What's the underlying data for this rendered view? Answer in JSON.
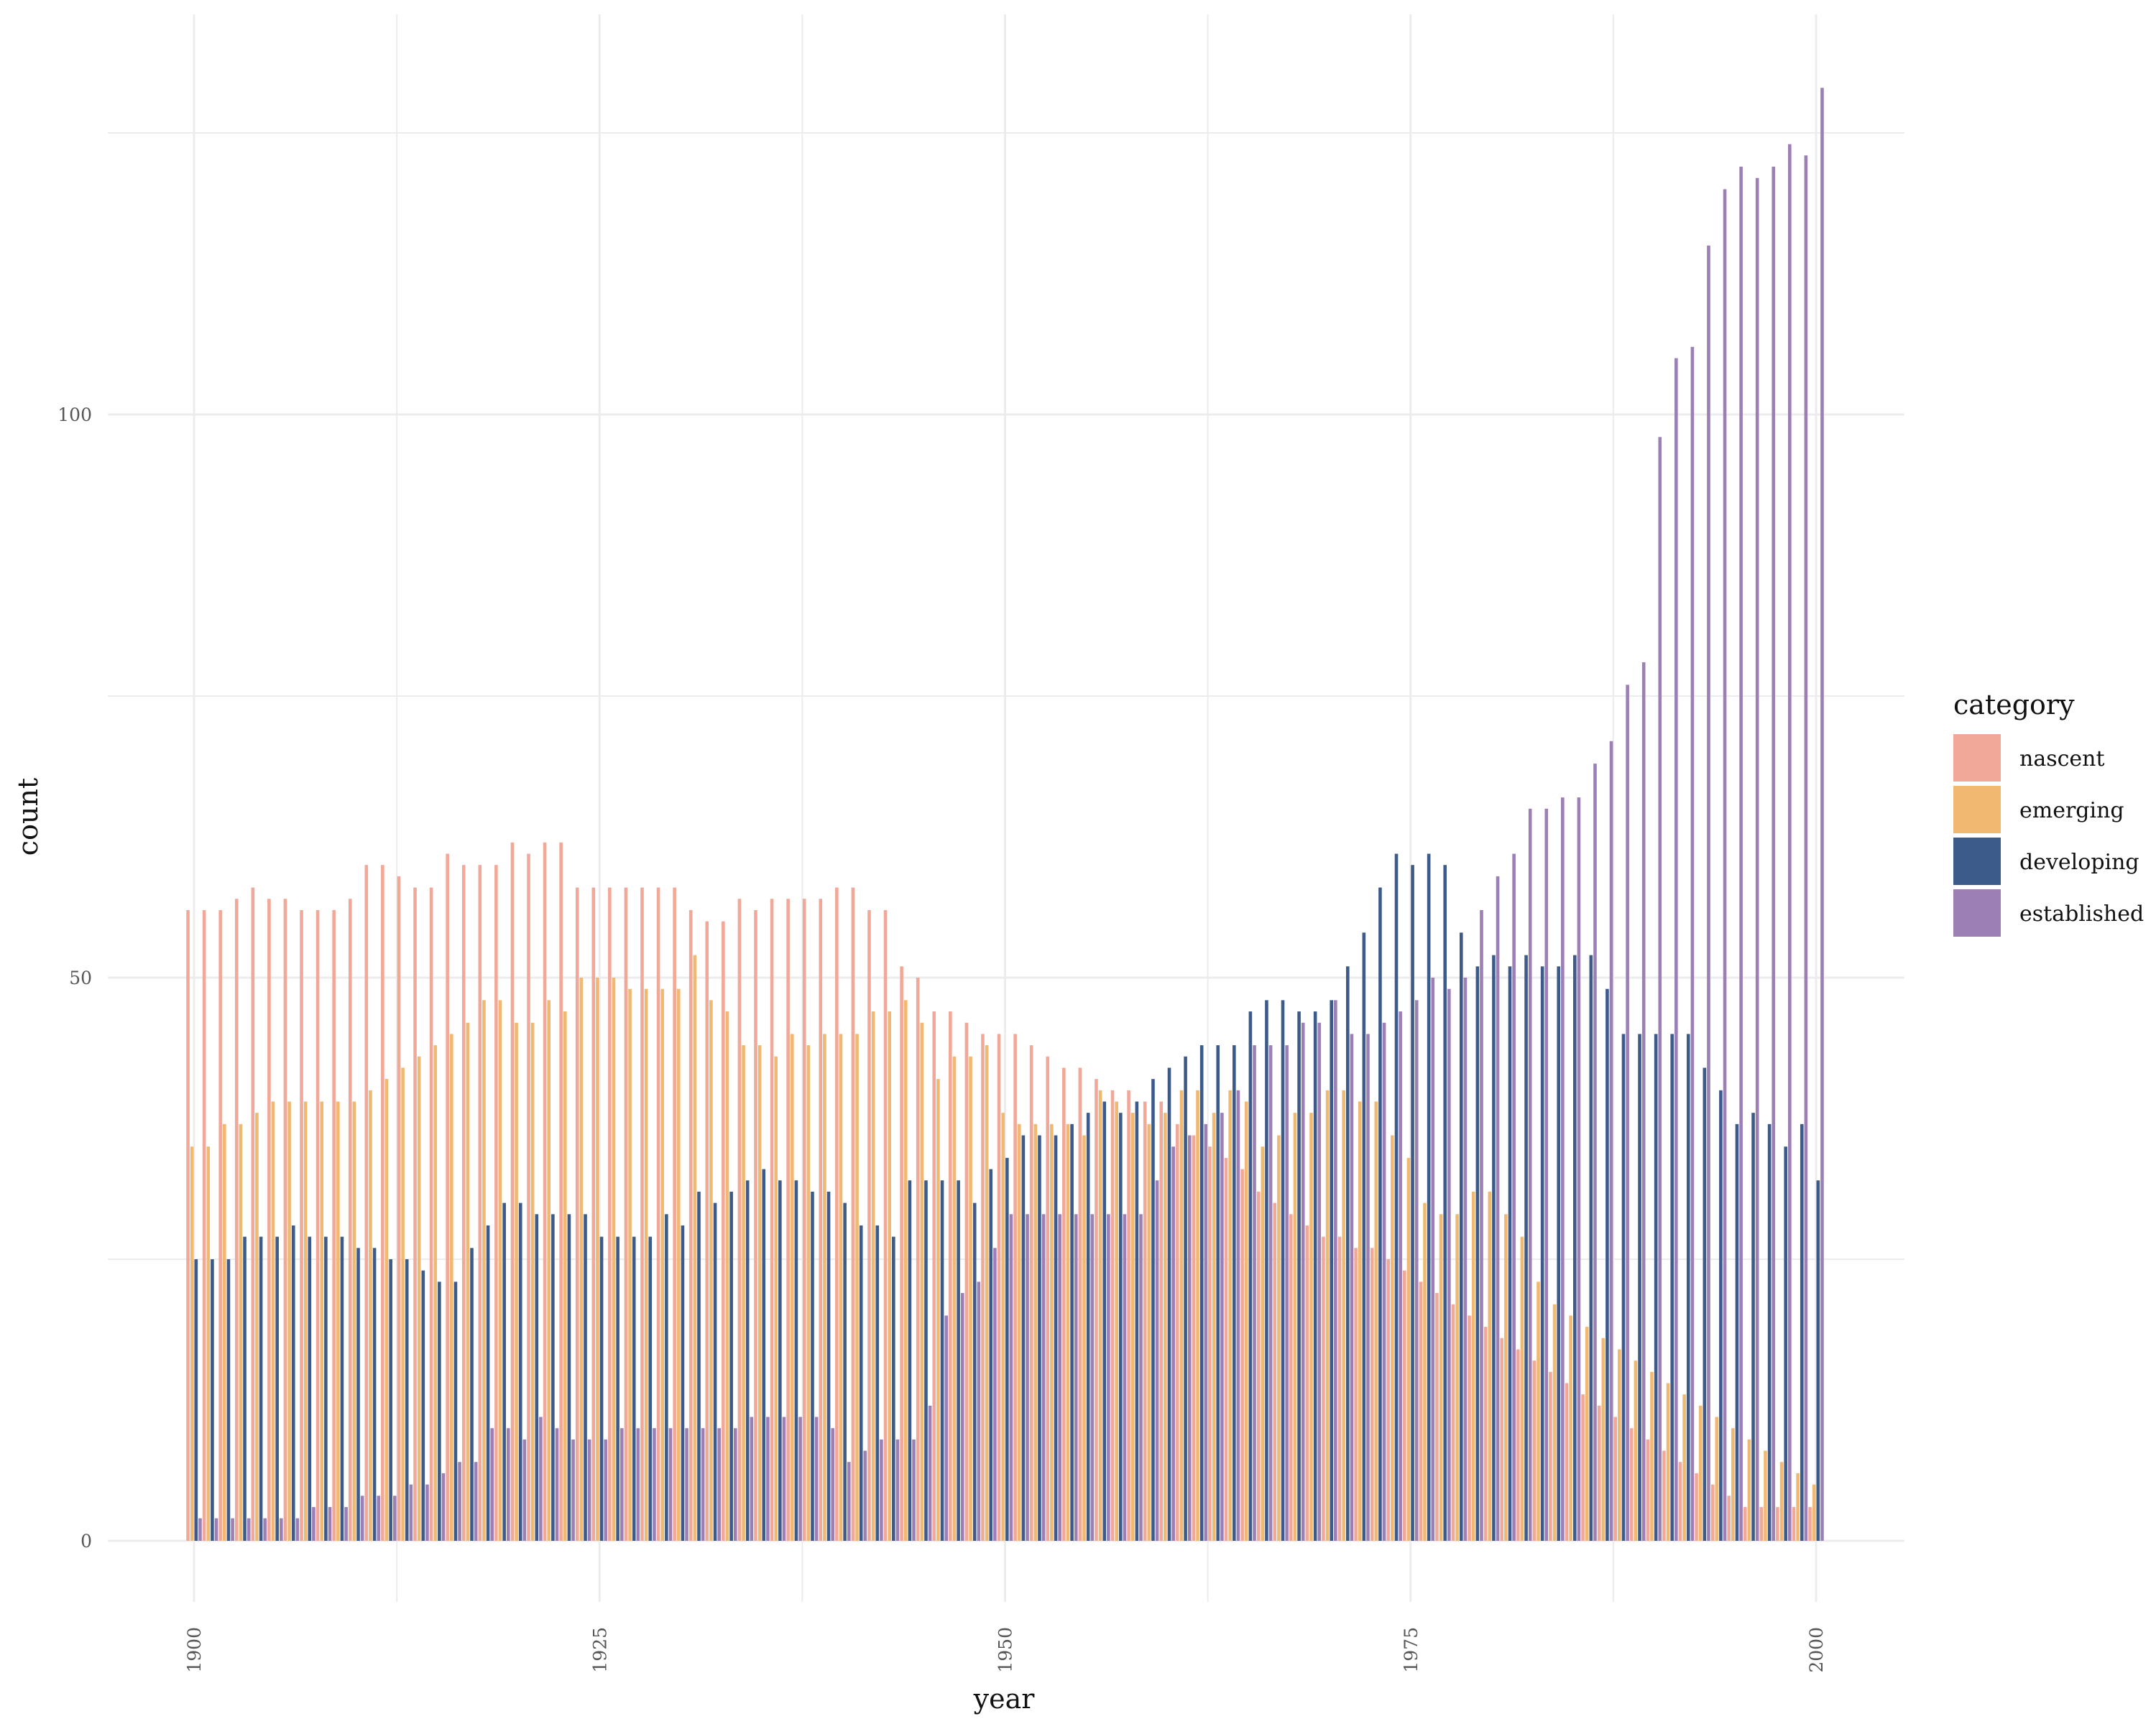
{
  "chart_data": {
    "type": "bar",
    "xlabel": "year",
    "ylabel": "count",
    "x_ticks": [
      1900,
      1925,
      1950,
      1975,
      2000
    ],
    "y_ticks": [
      0,
      50,
      100
    ],
    "xlim": [
      1895,
      2005
    ],
    "ylim": [
      -5,
      134
    ],
    "grid": true,
    "legend": {
      "title": "category",
      "position": "right"
    },
    "x": [
      1900,
      1901,
      1902,
      1903,
      1904,
      1905,
      1906,
      1907,
      1908,
      1909,
      1910,
      1911,
      1912,
      1913,
      1914,
      1915,
      1916,
      1917,
      1918,
      1919,
      1920,
      1921,
      1922,
      1923,
      1924,
      1925,
      1926,
      1927,
      1928,
      1929,
      1930,
      1931,
      1932,
      1933,
      1934,
      1935,
      1936,
      1937,
      1938,
      1939,
      1940,
      1941,
      1942,
      1943,
      1944,
      1945,
      1946,
      1947,
      1948,
      1949,
      1950,
      1951,
      1952,
      1953,
      1954,
      1955,
      1956,
      1957,
      1958,
      1959,
      1960,
      1961,
      1962,
      1963,
      1964,
      1965,
      1966,
      1967,
      1968,
      1969,
      1970,
      1971,
      1972,
      1973,
      1974,
      1975,
      1976,
      1977,
      1978,
      1979,
      1980,
      1981,
      1982,
      1983,
      1984,
      1985,
      1986,
      1987,
      1988,
      1989,
      1990,
      1991,
      1992,
      1993,
      1994,
      1995,
      1996,
      1997,
      1998,
      1999,
      2000
    ],
    "series": [
      {
        "name": "nascent",
        "color": "#F2A898",
        "values": [
          56,
          56,
          56,
          57,
          58,
          57,
          57,
          56,
          56,
          56,
          57,
          60,
          60,
          59,
          58,
          58,
          61,
          60,
          60,
          60,
          62,
          61,
          62,
          62,
          58,
          58,
          58,
          58,
          58,
          58,
          58,
          56,
          55,
          55,
          57,
          56,
          57,
          57,
          57,
          57,
          58,
          58,
          56,
          56,
          51,
          50,
          47,
          47,
          46,
          45,
          45,
          45,
          44,
          43,
          42,
          42,
          41,
          40,
          40,
          39,
          39,
          37,
          36,
          35,
          34,
          33,
          31,
          30,
          29,
          28,
          27,
          27,
          26,
          26,
          25,
          24,
          23,
          22,
          21,
          20,
          19,
          18,
          17,
          16,
          15,
          14,
          13,
          12,
          11,
          10,
          9,
          8,
          7,
          6,
          5,
          4,
          3,
          3,
          3,
          3,
          3
        ]
      },
      {
        "name": "emerging",
        "color": "#F0B870",
        "values": [
          35,
          35,
          37,
          37,
          38,
          39,
          39,
          39,
          39,
          39,
          39,
          40,
          41,
          42,
          43,
          44,
          45,
          46,
          48,
          48,
          46,
          46,
          48,
          47,
          50,
          50,
          50,
          49,
          49,
          49,
          49,
          52,
          48,
          47,
          44,
          44,
          43,
          45,
          44,
          45,
          45,
          45,
          47,
          47,
          48,
          46,
          41,
          43,
          43,
          44,
          38,
          37,
          37,
          37,
          37,
          36,
          40,
          39,
          38,
          37,
          38,
          40,
          40,
          38,
          40,
          39,
          35,
          36,
          38,
          38,
          40,
          40,
          39,
          39,
          36,
          34,
          30,
          29,
          29,
          31,
          31,
          29,
          27,
          23,
          21,
          20,
          19,
          18,
          17,
          16,
          15,
          14,
          13,
          12,
          11,
          10,
          9,
          8,
          7,
          6,
          5
        ]
      },
      {
        "name": "developing",
        "color": "#3C5A8A",
        "values": [
          25,
          25,
          25,
          27,
          27,
          27,
          28,
          27,
          27,
          27,
          26,
          26,
          25,
          25,
          24,
          23,
          23,
          26,
          28,
          30,
          30,
          29,
          29,
          29,
          29,
          27,
          27,
          27,
          27,
          29,
          28,
          31,
          30,
          31,
          32,
          33,
          32,
          32,
          31,
          31,
          30,
          28,
          28,
          27,
          32,
          32,
          32,
          32,
          30,
          33,
          34,
          36,
          36,
          36,
          37,
          38,
          39,
          38,
          39,
          41,
          42,
          43,
          44,
          44,
          44,
          47,
          48,
          48,
          47,
          47,
          48,
          51,
          54,
          58,
          61,
          60,
          61,
          60,
          54,
          51,
          52,
          51,
          52,
          51,
          51,
          52,
          52,
          49,
          45,
          45,
          45,
          45,
          45,
          42,
          40,
          37,
          38,
          37,
          35,
          37,
          32
        ]
      },
      {
        "name": "established",
        "color": "#9B7FB5",
        "values": [
          2,
          2,
          2,
          2,
          2,
          2,
          2,
          3,
          3,
          3,
          4,
          4,
          4,
          5,
          5,
          6,
          7,
          7,
          10,
          10,
          9,
          11,
          10,
          9,
          9,
          9,
          10,
          10,
          10,
          10,
          10,
          10,
          10,
          10,
          11,
          11,
          11,
          11,
          11,
          10,
          7,
          8,
          9,
          9,
          9,
          12,
          20,
          22,
          23,
          26,
          29,
          29,
          29,
          29,
          29,
          29,
          29,
          29,
          29,
          32,
          35,
          36,
          37,
          38,
          40,
          44,
          44,
          44,
          46,
          46,
          48,
          45,
          45,
          46,
          47,
          48,
          50,
          49,
          50,
          56,
          59,
          61,
          65,
          65,
          66,
          66,
          69,
          71,
          76,
          78,
          98,
          105,
          106,
          115,
          120,
          122,
          121,
          122,
          124,
          123,
          129
        ]
      }
    ]
  }
}
